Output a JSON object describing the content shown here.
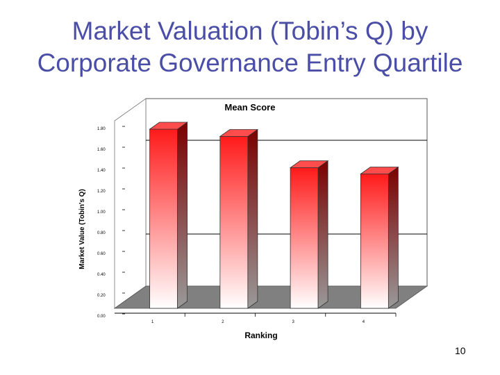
{
  "slide": {
    "title_line1": "Market Valuation (Tobin’s Q) by",
    "title_line2": "Corporate Governance Entry Quartile",
    "page_number": "10"
  },
  "colors": {
    "title": "#4a4ea6",
    "bar_top": "#ff1a1a",
    "bar_bottom": "#ffffff",
    "bar_side": "#8b0000",
    "bar_cap": "#ff4d4d",
    "floor": "#808080",
    "back_wall": "#ffffff"
  },
  "chart_data": {
    "type": "bar",
    "title": "Mean Score",
    "xlabel": "Ranking",
    "ylabel": "Market Value (Tobin's Q)",
    "categories": [
      "1",
      "2",
      "3",
      "4"
    ],
    "values": [
      1.72,
      1.65,
      1.35,
      1.29
    ],
    "yticks": [
      "0.00",
      "0.20",
      "0.40",
      "0.60",
      "0.80",
      "1.00",
      "1.20",
      "1.40",
      "1.60",
      "1.80"
    ],
    "ylim": [
      0,
      1.8
    ],
    "grid": true,
    "three_d": true
  }
}
